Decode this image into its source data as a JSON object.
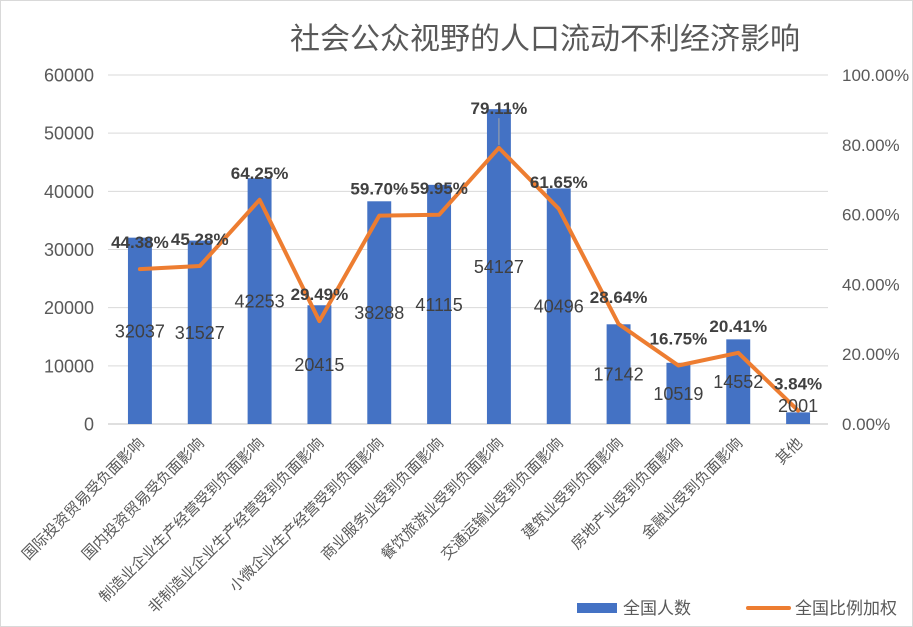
{
  "chart_data": {
    "type": "bar",
    "title": "社会公众视野的人口流动不利经济影响",
    "categories": [
      "国际投资贸易受负面影响",
      "国内投资贸易受负面影响",
      "制造业企业生产经营受到负面影响",
      "非制造业企业生产经营受到负面影响",
      "小微企业生产经营受到负面影响",
      "商业服务业受到负面影响",
      "餐饮旅游业受到负面影响",
      "交通运输业受到负面影响",
      "建筑业受到负面影响",
      "房地产业受到负面影响",
      "金融业受到负面影响",
      "其他"
    ],
    "series": [
      {
        "name": "全国人数",
        "type": "bar",
        "axis": "left",
        "color": "#4472C4",
        "values": [
          32037,
          31527,
          42253,
          20415,
          38288,
          41115,
          54127,
          40496,
          17142,
          10519,
          14552,
          2001
        ]
      },
      {
        "name": "全国比例加权",
        "type": "line",
        "axis": "right",
        "color": "#ED7D31",
        "values": [
          44.38,
          45.28,
          64.25,
          29.49,
          59.7,
          59.95,
          79.11,
          61.65,
          28.64,
          16.75,
          20.41,
          3.84
        ],
        "labels": [
          "44.38%",
          "45.28%",
          "64.25%",
          "29.49%",
          "59.70%",
          "59.95%",
          "79.11%",
          "61.65%",
          "28.64%",
          "16.75%",
          "20.41%",
          "3.84%"
        ]
      }
    ],
    "y_axis": {
      "range": [
        0,
        60000
      ],
      "ticks": [
        "0",
        "10000",
        "20000",
        "30000",
        "40000",
        "50000",
        "60000"
      ]
    },
    "y2_axis": {
      "range": [
        0,
        100
      ],
      "ticks": [
        "0.00%",
        "20.00%",
        "40.00%",
        "60.00%",
        "80.00%",
        "100.00%"
      ]
    },
    "grid": true,
    "legend": "bottom-right"
  }
}
